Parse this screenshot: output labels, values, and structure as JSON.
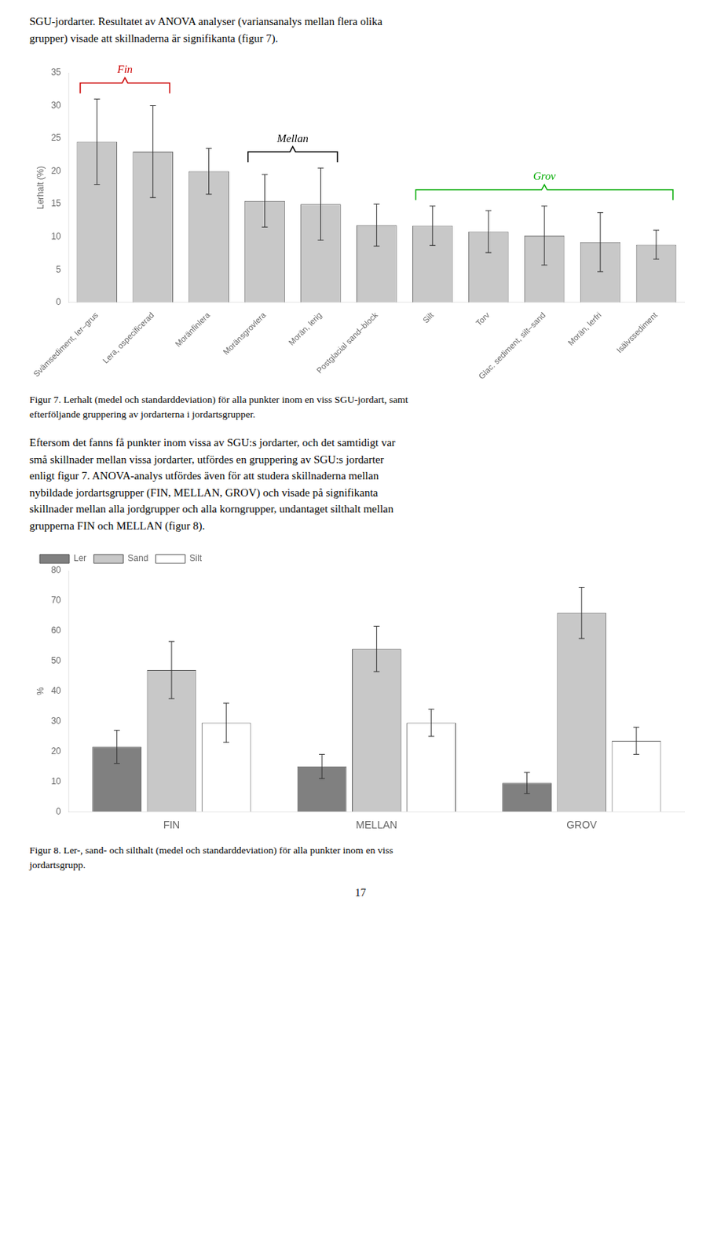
{
  "text_top": [
    "SGU-jordarter. Resultatet av ANOVA analyser (variansanalys mellan flera olika",
    "grupper) visade att skillnaderna är signifikanta (figur 7)."
  ],
  "chart_data": [
    {
      "type": "bar",
      "categories": [
        "Svämsediment, ler–grus",
        "Lera, ospecificerad",
        "Moränfinlera",
        "Moränsgrovlera",
        "Morän, lerig",
        "Postglacial sand–block",
        "Silt",
        "Torv",
        "Glac. sediment, silt–sand",
        "Morän, lerfri",
        "Isälvssediment"
      ],
      "values": [
        24.5,
        23.0,
        20.0,
        15.5,
        15.0,
        11.8,
        11.7,
        10.8,
        10.2,
        9.2,
        8.8
      ],
      "errors": [
        6.5,
        7.0,
        3.5,
        4.0,
        5.5,
        3.2,
        3.0,
        3.2,
        4.5,
        4.5,
        2.2
      ],
      "color": "#c8c8c8",
      "ylabel": "Lerhalt (%)",
      "ylim": [
        0,
        35
      ],
      "yticks": [
        0,
        5,
        10,
        15,
        20,
        25,
        30,
        35
      ],
      "grid": false,
      "annotations": [
        {
          "text": "Fin",
          "color": "#cc0000",
          "from": "Svämsediment, ler–grus",
          "to": "Lera, ospecificerad"
        },
        {
          "text": "Mellan",
          "color": "#000000",
          "from": "Moränsgrovlera",
          "to": "Morän, lerig"
        },
        {
          "text": "Grov",
          "color": "#00aa00",
          "from": "Silt",
          "to": "Isälvssediment"
        }
      ],
      "caption": [
        "Figur 7. Lerhalt (medel och standarddeviation) för alla punkter inom en viss SGU-jordart, samt",
        "efterföljande gruppering av jordarterna i jordartsgrupper."
      ]
    },
    {
      "type": "bar",
      "categories": [
        "FIN",
        "MELLAN",
        "GROV"
      ],
      "series": [
        {
          "name": "Ler",
          "color": "#808080",
          "values": [
            21.5,
            15.0,
            9.5
          ],
          "errors": [
            5.5,
            4.0,
            3.5
          ]
        },
        {
          "name": "Sand",
          "color": "#c8c8c8",
          "values": [
            47.0,
            54.0,
            66.0
          ],
          "errors": [
            9.5,
            7.5,
            8.5
          ]
        },
        {
          "name": "Silt",
          "color": "#ffffff",
          "values": [
            29.5,
            29.5,
            23.5
          ],
          "errors": [
            6.5,
            4.5,
            4.5
          ]
        }
      ],
      "ylabel": "%",
      "ylim": [
        0,
        80
      ],
      "yticks": [
        0,
        10,
        20,
        30,
        40,
        50,
        60,
        70,
        80
      ],
      "grid": false,
      "legend": "upper left",
      "caption": [
        "Figur 8. Ler-, sand- och silthalt (medel och standarddeviation) för alla punkter inom en viss",
        "jordartsgrupp."
      ]
    }
  ],
  "text_middle": [
    "Eftersom det fanns få punkter inom vissa av SGU:s jordarter, och det samtidigt var",
    "små skillnader mellan vissa jordarter, utfördes en gruppering av SGU:s jordarter",
    "enligt figur 7. ANOVA-analys utfördes även för att studera skillnaderna mellan",
    "nybildade jordartsgrupper (FIN, MELLAN, GROV) och visade på signifikanta",
    "skillnader mellan alla jordgrupper och alla korngrupper, undantaget silthalt mellan",
    "grupperna FIN och MELLAN (figur 8)."
  ],
  "page_number": "17"
}
